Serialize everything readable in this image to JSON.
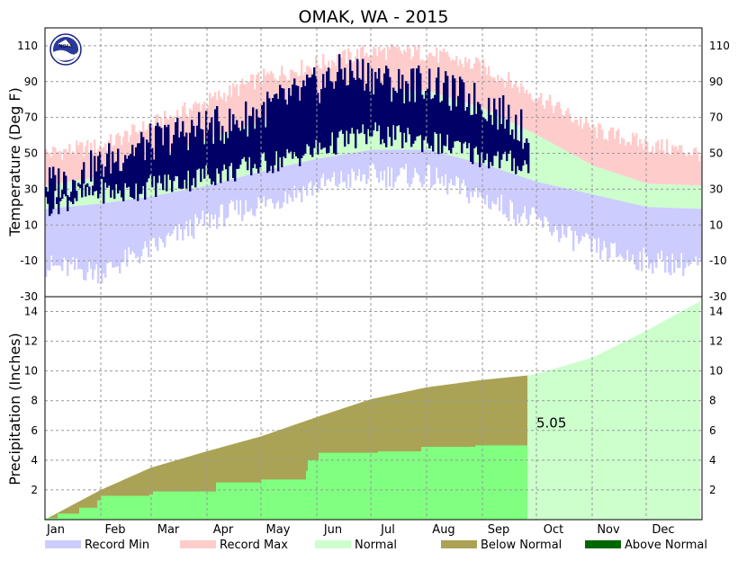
{
  "chart_data": [
    {
      "type": "area",
      "panel": "temperature",
      "title": "OMAK, WA - 2015",
      "ylabel": "Temperature (Deg F)",
      "ylim": [
        -30,
        120
      ],
      "yticks": [
        -30,
        -10,
        10,
        30,
        50,
        70,
        90,
        110
      ],
      "xticks": [
        "Jan",
        "Feb",
        "Mar",
        "Apr",
        "May",
        "Jun",
        "Jul",
        "Aug",
        "Sep",
        "Oct",
        "Nov",
        "Dec"
      ],
      "grid": true,
      "days_observed_through": "Sep 26",
      "normal_high_anchors": [
        [
          1,
          32
        ],
        [
          32,
          37
        ],
        [
          60,
          46
        ],
        [
          91,
          58
        ],
        [
          121,
          68
        ],
        [
          152,
          76
        ],
        [
          182,
          85
        ],
        [
          213,
          85
        ],
        [
          244,
          75
        ],
        [
          274,
          60
        ],
        [
          305,
          43
        ],
        [
          335,
          33
        ],
        [
          365,
          32
        ]
      ],
      "normal_low_anchors": [
        [
          1,
          19
        ],
        [
          32,
          22
        ],
        [
          60,
          26
        ],
        [
          91,
          32
        ],
        [
          121,
          40
        ],
        [
          152,
          47
        ],
        [
          182,
          52
        ],
        [
          213,
          52
        ],
        [
          244,
          44
        ],
        [
          274,
          34
        ],
        [
          305,
          27
        ],
        [
          335,
          20
        ],
        [
          365,
          19
        ]
      ],
      "record_high_anchors": [
        [
          1,
          50
        ],
        [
          32,
          54
        ],
        [
          60,
          66
        ],
        [
          91,
          79
        ],
        [
          121,
          92
        ],
        [
          152,
          100
        ],
        [
          182,
          107
        ],
        [
          213,
          106
        ],
        [
          244,
          98
        ],
        [
          274,
          82
        ],
        [
          305,
          63
        ],
        [
          335,
          55
        ],
        [
          365,
          50
        ]
      ],
      "record_low_anchors": [
        [
          1,
          -13
        ],
        [
          32,
          -16
        ],
        [
          60,
          -3
        ],
        [
          91,
          13
        ],
        [
          121,
          22
        ],
        [
          152,
          32
        ],
        [
          182,
          38
        ],
        [
          213,
          37
        ],
        [
          244,
          25
        ],
        [
          274,
          12
        ],
        [
          305,
          -3
        ],
        [
          335,
          -10
        ],
        [
          365,
          -13
        ]
      ],
      "actual_high_anchors": [
        [
          1,
          33
        ],
        [
          15,
          35
        ],
        [
          32,
          44
        ],
        [
          45,
          51
        ],
        [
          60,
          56
        ],
        [
          75,
          61
        ],
        [
          91,
          65
        ],
        [
          105,
          66
        ],
        [
          121,
          74
        ],
        [
          135,
          80
        ],
        [
          152,
          88
        ],
        [
          165,
          95
        ],
        [
          182,
          94
        ],
        [
          195,
          88
        ],
        [
          213,
          90
        ],
        [
          225,
          84
        ],
        [
          244,
          78
        ],
        [
          260,
          69
        ],
        [
          269,
          60
        ]
      ],
      "actual_low_anchors": [
        [
          1,
          21
        ],
        [
          15,
          25
        ],
        [
          32,
          29
        ],
        [
          45,
          28
        ],
        [
          60,
          32
        ],
        [
          75,
          34
        ],
        [
          91,
          38
        ],
        [
          105,
          40
        ],
        [
          121,
          44
        ],
        [
          135,
          47
        ],
        [
          152,
          52
        ],
        [
          165,
          57
        ],
        [
          182,
          61
        ],
        [
          195,
          59
        ],
        [
          213,
          57
        ],
        [
          225,
          54
        ],
        [
          244,
          48
        ],
        [
          260,
          45
        ],
        [
          269,
          42
        ]
      ]
    },
    {
      "type": "area",
      "panel": "precipitation",
      "ylabel": "Precipitation (Inches)",
      "ylim": [
        0,
        15
      ],
      "yticks": [
        2,
        4,
        6,
        8,
        10,
        12,
        14
      ],
      "xticks": [
        "Jan",
        "Feb",
        "Mar",
        "Apr",
        "May",
        "Jun",
        "Jul",
        "Aug",
        "Sep",
        "Oct",
        "Nov",
        "Dec"
      ],
      "grid": true,
      "annotation": "5.05",
      "normal_cumulative_anchors": [
        [
          1,
          0
        ],
        [
          32,
          2.0
        ],
        [
          60,
          3.5
        ],
        [
          91,
          4.6
        ],
        [
          121,
          5.6
        ],
        [
          152,
          6.9
        ],
        [
          182,
          8.1
        ],
        [
          213,
          8.9
        ],
        [
          244,
          9.4
        ],
        [
          269,
          9.7
        ],
        [
          274,
          9.8
        ],
        [
          305,
          10.9
        ],
        [
          335,
          12.7
        ],
        [
          365,
          14.7
        ]
      ],
      "actual_cumulative_steps": [
        [
          1,
          0.1
        ],
        [
          8,
          0.4
        ],
        [
          20,
          0.8
        ],
        [
          30,
          1.3
        ],
        [
          32,
          1.6
        ],
        [
          59,
          1.7
        ],
        [
          61,
          1.9
        ],
        [
          96,
          2.5
        ],
        [
          121,
          2.7
        ],
        [
          146,
          3.3
        ],
        [
          147,
          4.0
        ],
        [
          150,
          4.0
        ],
        [
          153,
          4.5
        ],
        [
          163,
          4.5
        ],
        [
          186,
          4.6
        ],
        [
          210,
          4.9
        ],
        [
          227,
          4.9
        ],
        [
          240,
          5.0
        ],
        [
          269,
          5.05
        ]
      ]
    }
  ],
  "legend": [
    {
      "label": "Record Min",
      "color": "#ccccff"
    },
    {
      "label": "Record Max",
      "color": "#ffcccc"
    },
    {
      "label": "Normal",
      "color": "#ccffcc"
    },
    {
      "label": "Below Normal",
      "color": "#aaa355"
    },
    {
      "label": "Above Normal",
      "color": "#006600"
    }
  ],
  "colors": {
    "actual_temperature": "#000066",
    "actual_precipitation": "#80ff80",
    "background": "#ffffff",
    "grid": "#999999"
  },
  "logo_text": "NOAA",
  "logo_icon": "noaa-logo-icon"
}
